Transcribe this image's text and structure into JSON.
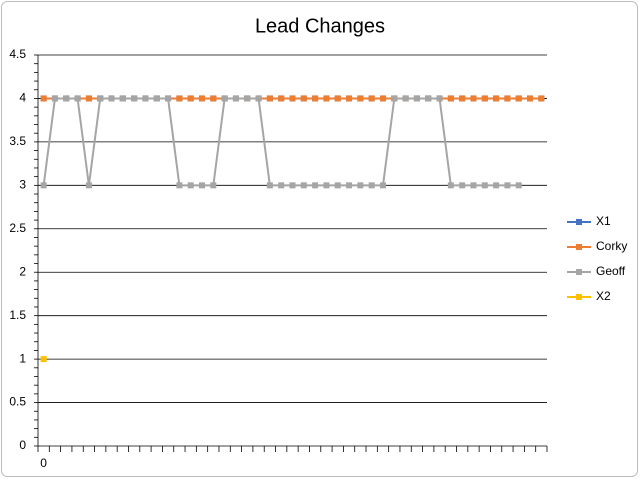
{
  "chart_data": {
    "type": "line",
    "title": "Lead Changes",
    "categories": [
      "0",
      null,
      null,
      null,
      null,
      null,
      null,
      null,
      null,
      null,
      null,
      null,
      null,
      null,
      null,
      null,
      null,
      null,
      null,
      null,
      null,
      null,
      null,
      null,
      null,
      null,
      null,
      null,
      null,
      null,
      null,
      null,
      null,
      null,
      null,
      null,
      null,
      null,
      null,
      null,
      null,
      null,
      null,
      null,
      null
    ],
    "series": [
      {
        "name": "X1",
        "color": "#4472c4",
        "values": [
          4,
          4,
          4,
          4,
          4,
          4,
          4,
          4,
          4,
          4,
          4,
          4,
          4,
          4,
          4,
          4,
          4,
          4,
          4,
          4,
          4,
          4,
          4,
          4,
          4,
          4,
          4,
          4,
          4,
          4,
          4,
          4,
          4,
          4,
          4,
          4,
          4,
          4,
          4,
          4,
          4,
          4,
          4,
          4,
          4
        ]
      },
      {
        "name": "Corky",
        "color": "#ed7d31",
        "values": [
          4,
          4,
          4,
          4,
          4,
          4,
          4,
          4,
          4,
          4,
          4,
          4,
          4,
          4,
          4,
          4,
          4,
          4,
          4,
          4,
          4,
          4,
          4,
          4,
          4,
          4,
          4,
          4,
          4,
          4,
          4,
          4,
          4,
          4,
          4,
          4,
          4,
          4,
          4,
          4,
          4,
          4,
          4,
          4,
          4
        ]
      },
      {
        "name": "Geoff",
        "color": "#a5a5a5",
        "values": [
          3,
          4,
          4,
          4,
          3,
          4,
          4,
          4,
          4,
          4,
          4,
          4,
          3,
          3,
          3,
          3,
          4,
          4,
          4,
          4,
          3,
          3,
          3,
          3,
          3,
          3,
          3,
          3,
          3,
          3,
          3,
          4,
          4,
          4,
          4,
          4,
          3,
          3,
          3,
          3,
          3,
          3,
          3,
          null,
          null
        ]
      },
      {
        "name": "X2",
        "color": "#ffc000",
        "values": [
          1,
          null,
          null,
          null,
          null,
          null,
          null,
          null,
          null,
          null,
          null,
          null,
          null,
          null,
          null,
          null,
          null,
          null,
          null,
          null,
          null,
          null,
          null,
          null,
          null,
          null,
          null,
          null,
          null,
          null,
          null,
          null,
          null,
          null,
          null,
          null,
          null,
          null,
          null,
          null,
          null,
          null,
          null,
          null,
          null
        ]
      }
    ],
    "ylim": [
      0,
      4.5
    ],
    "yticks": [
      0,
      0.5,
      1,
      1.5,
      2,
      2.5,
      3,
      3.5,
      4,
      4.5
    ],
    "grid": true,
    "legend": "right"
  }
}
